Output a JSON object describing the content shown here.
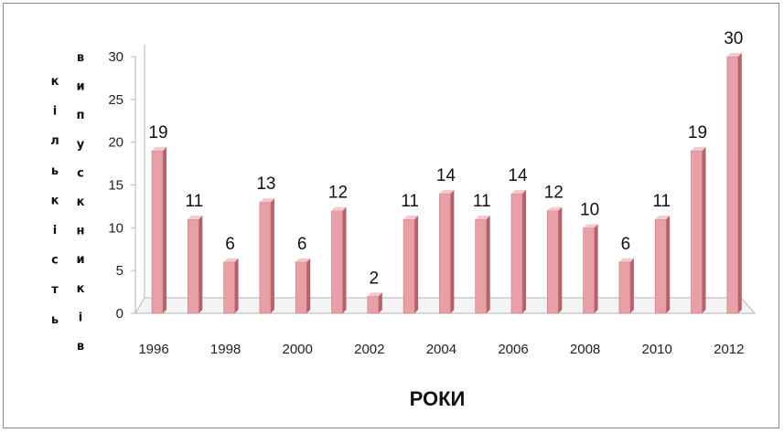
{
  "chart_data": {
    "type": "bar",
    "categories": [
      "1996",
      "1997",
      "1998",
      "1999",
      "2000",
      "2001",
      "2002",
      "2003",
      "2004",
      "2005",
      "2006",
      "2007",
      "2008",
      "2009",
      "2010",
      "2011",
      "2012"
    ],
    "x_tick_labels": [
      "1996",
      "1998",
      "2000",
      "2002",
      "2004",
      "2006",
      "2008",
      "2010",
      "2012"
    ],
    "values": [
      19,
      11,
      6,
      13,
      6,
      12,
      2,
      11,
      14,
      11,
      14,
      12,
      10,
      6,
      11,
      19,
      30
    ],
    "data_labels": [
      "19",
      "11",
      "6",
      "13",
      "6",
      "12",
      "2",
      "11",
      "14",
      "11",
      "14",
      "12",
      "10",
      "6",
      "11",
      "19",
      "30"
    ],
    "ylim": [
      0,
      30
    ],
    "y_ticks": [
      "0",
      "5",
      "10",
      "15",
      "20",
      "25",
      "30"
    ],
    "xlabel": "РОКИ",
    "ylabel_left_letters": [
      "к",
      "і",
      "л",
      "ь",
      "к",
      "і",
      "с",
      "т",
      "ь"
    ],
    "ylabel_right_letters": [
      "в",
      "и",
      "п",
      "у",
      "с",
      "к",
      "н",
      "и",
      "к",
      "і",
      "в"
    ],
    "grid": false,
    "bar_color": "#e8a0a6",
    "bar_shade_color": "#b5626b",
    "bar_top_color": "#f3c9cc"
  }
}
